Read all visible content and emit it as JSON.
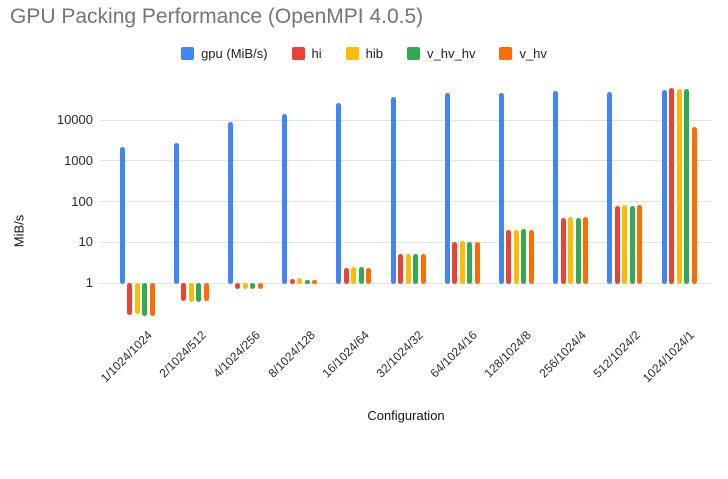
{
  "title": "GPU Packing Performance (OpenMPI 4.0.5)",
  "chart_data": {
    "type": "bar",
    "title": "GPU Packing Performance (OpenMPI 4.0.5)",
    "xlabel": "Configuration",
    "ylabel": "MiB/s",
    "y_scale": "log",
    "baseline": 1,
    "y_ticks": [
      1,
      10,
      100,
      1000,
      10000
    ],
    "ylim": [
      0.13,
      70000
    ],
    "grid": true,
    "legend_position": "top",
    "categories": [
      "1/1024/1024",
      "2/1024/512",
      "4/1024/256",
      "8/1024/128",
      "16/1024/64",
      "32/1024/32",
      "64/1024/16",
      "128/1024/8",
      "256/1024/4",
      "512/1024/2",
      "1024/1024/1"
    ],
    "series": [
      {
        "name": "gpu (MiB/s)",
        "color": "#4285F4",
        "values": [
          2100,
          2600,
          8600,
          13700,
          25000,
          36000,
          43500,
          46000,
          50000,
          48500,
          54000
        ]
      },
      {
        "name": "hi",
        "color": "#EA4335",
        "values": [
          0.16,
          0.35,
          0.7,
          1.25,
          2.3,
          5.0,
          10.0,
          20.0,
          38,
          75,
          58000
        ]
      },
      {
        "name": "hib",
        "color": "#FBBC04",
        "values": [
          0.17,
          0.34,
          0.68,
          1.3,
          2.5,
          5.0,
          10.5,
          20.0,
          40,
          80,
          55000
        ]
      },
      {
        "name": "v_hv_hv",
        "color": "#34A853",
        "values": [
          0.15,
          0.34,
          0.7,
          1.2,
          2.4,
          5.0,
          10.0,
          21.0,
          39,
          77,
          57000
        ]
      },
      {
        "name": "v_hv",
        "color": "#FF6D01",
        "values": [
          0.15,
          0.35,
          0.68,
          1.15,
          2.3,
          5.0,
          10.0,
          20.0,
          40,
          80,
          6600
        ]
      }
    ]
  }
}
